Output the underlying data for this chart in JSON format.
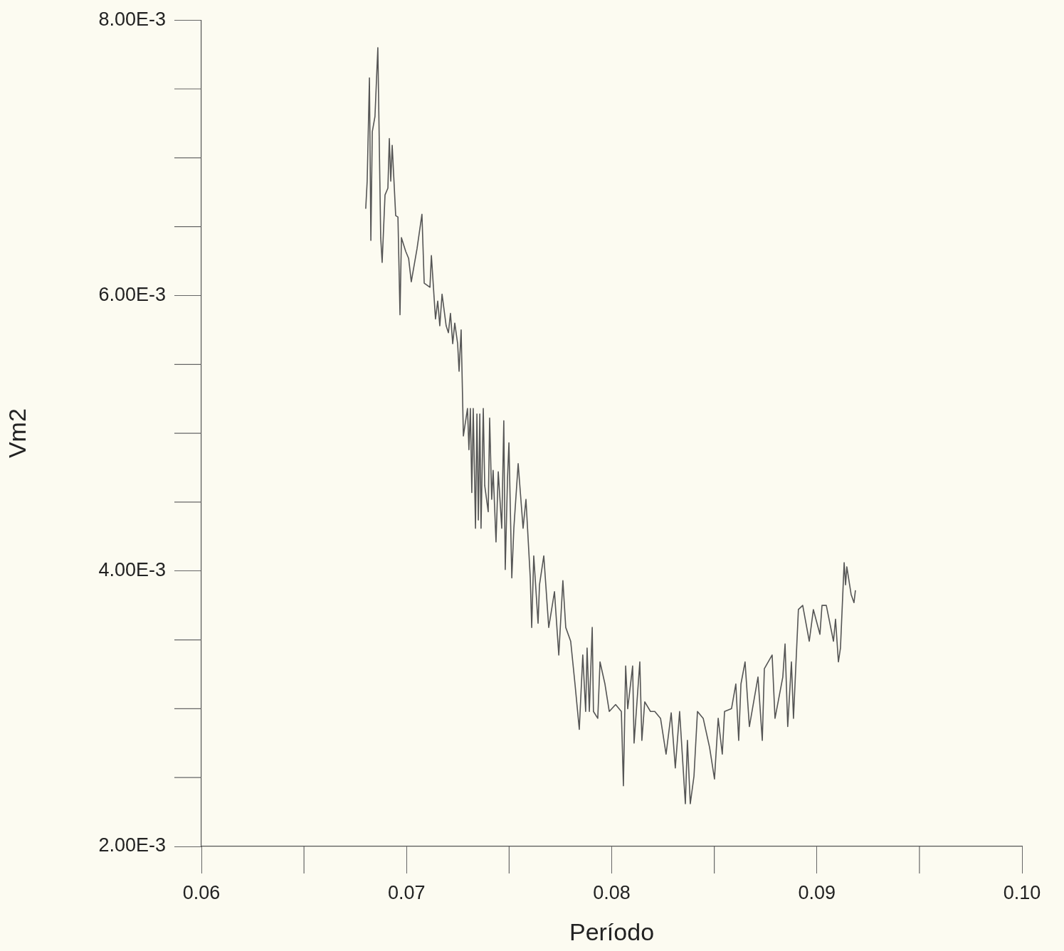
{
  "chart_data": {
    "type": "line",
    "xlabel": "Período",
    "ylabel": "Vm2",
    "xlim": [
      0.06,
      0.1
    ],
    "ylim": [
      0.002,
      0.008
    ],
    "xticks": [
      0.06,
      0.07,
      0.08,
      0.09,
      {
        "value": 0.1,
        "label": "0.10"
      }
    ],
    "yticks": [
      {
        "value": 0.002,
        "label": "2.00E-3"
      },
      {
        "value": 0.004,
        "label": "4.00E-3"
      },
      {
        "value": 0.006,
        "label": "6.00E-3"
      },
      {
        "value": 0.008,
        "label": "8.00E-3"
      }
    ],
    "grid": false,
    "marker": "none",
    "line_style": "solid",
    "legend": false,
    "series": [
      {
        "color": "#555555",
        "x": [
          0.06801,
          0.06808,
          0.06819,
          0.06826,
          0.06833,
          0.06846,
          0.0686,
          0.06874,
          0.06881,
          0.06895,
          0.06909,
          0.06916,
          0.06923,
          0.0693,
          0.06947,
          0.06958,
          0.06968,
          0.06975,
          0.06996,
          0.0701,
          0.07023,
          0.07051,
          0.07075,
          0.07086,
          0.07114,
          0.07121,
          0.07141,
          0.07152,
          0.07162,
          0.07173,
          0.07193,
          0.07204,
          0.07214,
          0.07225,
          0.07235,
          0.07249,
          0.07256,
          0.07266,
          0.07277,
          0.07297,
          0.07304,
          0.07311,
          0.07318,
          0.07325,
          0.07336,
          0.07343,
          0.0735,
          0.07357,
          0.07363,
          0.07374,
          0.07381,
          0.07398,
          0.07405,
          0.07415,
          0.07422,
          0.07436,
          0.07447,
          0.07464,
          0.07474,
          0.07481,
          0.07492,
          0.07499,
          0.07513,
          0.07523,
          0.07544,
          0.07568,
          0.07582,
          0.07603,
          0.0761,
          0.0762,
          0.07641,
          0.07648,
          0.07669,
          0.07693,
          0.07721,
          0.07742,
          0.07762,
          0.07776,
          0.078,
          0.07821,
          0.07842,
          0.07859,
          0.07873,
          0.0788,
          0.07891,
          0.07905,
          0.07911,
          0.07932,
          0.07943,
          0.07967,
          0.07988,
          0.08019,
          0.08047,
          0.08057,
          0.08068,
          0.08078,
          0.08102,
          0.08109,
          0.08137,
          0.08147,
          0.08161,
          0.08189,
          0.0821,
          0.08238,
          0.08265,
          0.0829,
          0.0831,
          0.08331,
          0.08359,
          0.08369,
          0.08383,
          0.08401,
          0.08418,
          0.08446,
          0.08477,
          0.08501,
          0.08519,
          0.08539,
          0.0855,
          0.08584,
          0.08605,
          0.08619,
          0.0863,
          0.0865,
          0.08671,
          0.08713,
          0.08734,
          0.08744,
          0.08782,
          0.08796,
          0.08834,
          0.08845,
          0.08858,
          0.08876,
          0.08886,
          0.0891,
          0.08931,
          0.08963,
          0.08983,
          0.09015,
          0.09025,
          0.09046,
          0.09081,
          0.09091,
          0.09105,
          0.09115,
          0.09133,
          0.0914,
          0.09146,
          0.09167,
          0.09181,
          0.09188
        ],
        "values": [
          0.00663,
          0.00683,
          0.00758,
          0.0064,
          0.00719,
          0.0073,
          0.0078,
          0.00642,
          0.00624,
          0.00673,
          0.00678,
          0.00714,
          0.00683,
          0.00709,
          0.00658,
          0.00657,
          0.00586,
          0.00642,
          0.00632,
          0.00627,
          0.0061,
          0.00634,
          0.00659,
          0.00609,
          0.00606,
          0.00629,
          0.00583,
          0.00596,
          0.00578,
          0.00601,
          0.00578,
          0.00573,
          0.00587,
          0.00565,
          0.0058,
          0.00565,
          0.00545,
          0.00575,
          0.00498,
          0.00518,
          0.00488,
          0.00518,
          0.00457,
          0.00518,
          0.00431,
          0.00514,
          0.00437,
          0.00514,
          0.00431,
          0.00518,
          0.00462,
          0.00443,
          0.00511,
          0.00452,
          0.00473,
          0.00421,
          0.00472,
          0.00431,
          0.00509,
          0.00401,
          0.00467,
          0.00493,
          0.00395,
          0.00431,
          0.00478,
          0.00431,
          0.00452,
          0.00395,
          0.00359,
          0.00411,
          0.00362,
          0.0039,
          0.00411,
          0.00359,
          0.00385,
          0.00339,
          0.00393,
          0.00359,
          0.00349,
          0.00318,
          0.00285,
          0.00339,
          0.00298,
          0.00344,
          0.00298,
          0.00359,
          0.00298,
          0.00293,
          0.00334,
          0.00318,
          0.00298,
          0.00303,
          0.00298,
          0.00244,
          0.00331,
          0.003,
          0.00331,
          0.00275,
          0.00334,
          0.00277,
          0.00305,
          0.00298,
          0.00298,
          0.00293,
          0.00267,
          0.00297,
          0.00257,
          0.00298,
          0.00231,
          0.00277,
          0.00231,
          0.00251,
          0.00298,
          0.00293,
          0.00272,
          0.00249,
          0.00293,
          0.00267,
          0.00298,
          0.003,
          0.00318,
          0.00277,
          0.00318,
          0.00334,
          0.00287,
          0.00323,
          0.00277,
          0.00329,
          0.00339,
          0.00293,
          0.00323,
          0.00347,
          0.00287,
          0.00334,
          0.00293,
          0.00372,
          0.00375,
          0.00349,
          0.00372,
          0.00354,
          0.00375,
          0.00375,
          0.00349,
          0.00365,
          0.00334,
          0.00344,
          0.00406,
          0.0039,
          0.00403,
          0.00383,
          0.00377,
          0.00386
        ]
      }
    ]
  }
}
